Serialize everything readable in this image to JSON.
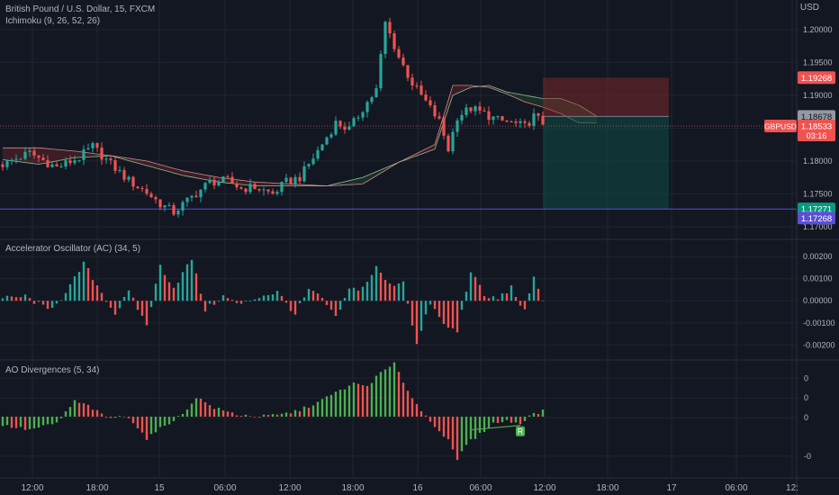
{
  "header": {
    "symbol_line": "British Pound / U.S. Dollar, 15, FXCM",
    "ichimoku_label": "Ichimoku (9, 26, 52, 26)",
    "currency": "USD"
  },
  "ac_pane": {
    "label": "Accelerator Oscillator (AC) (34, 5)"
  },
  "ao_pane": {
    "label": "AO Divergences (5, 34)",
    "divergence_marker": "R"
  },
  "price_labels": {
    "stop": "1.19268",
    "entry": "1.18678",
    "ticker": "GBPUSD",
    "last": "1.18533",
    "countdown": "03:16",
    "target": "1.17271",
    "line": "1.17268"
  },
  "colors": {
    "background": "#131722",
    "grid": "#1f2430",
    "up": "#26a69a",
    "down": "#ef5350",
    "ao_up": "#4caf50",
    "risk": "#8e2b2b",
    "reward": "#0e4c47",
    "horizontal_line": "#5b4fd6"
  },
  "chart_data": [
    {
      "type": "candlestick",
      "title": "British Pound / U.S. Dollar, 15, FXCM",
      "ylabel": "USD",
      "x_ticks": [
        "12:00",
        "18:00",
        "15",
        "06:00",
        "12:00",
        "18:00",
        "16",
        "06:00",
        "12:00",
        "18:00",
        "17",
        "06:00",
        "12:"
      ],
      "y_ticks": [
        "1.20000",
        "1.19500",
        "1.19000",
        "1.18500",
        "1.18000",
        "1.17500",
        "1.17000"
      ],
      "ylim": [
        1.1682,
        1.2045
      ],
      "close_path": [
        [
          0,
          1.1795
        ],
        [
          6,
          1.1812
        ],
        [
          12,
          1.179
        ],
        [
          17,
          1.1805
        ],
        [
          20,
          1.1822
        ],
        [
          24,
          1.1795
        ],
        [
          28,
          1.177
        ],
        [
          32,
          1.1752
        ],
        [
          35,
          1.1735
        ],
        [
          38,
          1.1722
        ],
        [
          42,
          1.1745
        ],
        [
          46,
          1.1768
        ],
        [
          50,
          1.177
        ],
        [
          53,
          1.1758
        ],
        [
          56,
          1.176
        ],
        [
          60,
          1.175
        ],
        [
          63,
          1.1768
        ],
        [
          66,
          1.1775
        ],
        [
          70,
          1.1815
        ],
        [
          74,
          1.1858
        ],
        [
          77,
          1.1848
        ],
        [
          80,
          1.188
        ],
        [
          83,
          1.1908
        ],
        [
          85,
          1.201
        ],
        [
          88,
          1.1958
        ],
        [
          91,
          1.1918
        ],
        [
          94,
          1.189
        ],
        [
          97,
          1.186
        ],
        [
          99,
          1.1818
        ],
        [
          101,
          1.1868
        ],
        [
          104,
          1.188
        ],
        [
          107,
          1.1872
        ],
        [
          110,
          1.1862
        ],
        [
          113,
          1.1858
        ],
        [
          116,
          1.1852
        ],
        [
          118,
          1.1868
        ],
        [
          120,
          1.1858
        ]
      ],
      "ichimoku": {
        "span_a": [
          [
            0,
            1.1802
          ],
          [
            8,
            1.1795
          ],
          [
            16,
            1.1805
          ],
          [
            24,
            1.1808
          ],
          [
            32,
            1.1793
          ],
          [
            40,
            1.1778
          ],
          [
            48,
            1.1768
          ],
          [
            56,
            1.1762
          ],
          [
            64,
            1.1762
          ],
          [
            72,
            1.1762
          ],
          [
            80,
            1.1775
          ],
          [
            88,
            1.1798
          ],
          [
            96,
            1.1818
          ],
          [
            100,
            1.19
          ],
          [
            104,
            1.1912
          ],
          [
            108,
            1.1915
          ],
          [
            112,
            1.1905
          ],
          [
            116,
            1.19
          ],
          [
            120,
            1.1895
          ],
          [
            124,
            1.1895
          ],
          [
            128,
            1.1885
          ],
          [
            132,
            1.1868
          ]
        ],
        "span_b": [
          [
            0,
            1.182
          ],
          [
            8,
            1.182
          ],
          [
            16,
            1.1815
          ],
          [
            24,
            1.1808
          ],
          [
            32,
            1.18
          ],
          [
            40,
            1.1785
          ],
          [
            48,
            1.1775
          ],
          [
            56,
            1.1768
          ],
          [
            64,
            1.1765
          ],
          [
            72,
            1.1762
          ],
          [
            80,
            1.1765
          ],
          [
            88,
            1.1798
          ],
          [
            96,
            1.1825
          ],
          [
            100,
            1.1915
          ],
          [
            104,
            1.1915
          ],
          [
            108,
            1.1912
          ],
          [
            112,
            1.1902
          ],
          [
            116,
            1.189
          ],
          [
            120,
            1.1882
          ],
          [
            124,
            1.1872
          ],
          [
            128,
            1.1858
          ],
          [
            132,
            1.1858
          ]
        ]
      },
      "long_short_position": {
        "start": 120,
        "end": 148,
        "entry": 1.18678,
        "stop": 1.19268,
        "target": 1.17271
      },
      "horizontal_line": 1.17268,
      "last_price": 1.18533
    },
    {
      "type": "bar",
      "title": "Accelerator Oscillator (AC) (34, 5)",
      "y_ticks": [
        "0.00200",
        "0.00100",
        "0.00000",
        "-0.00100",
        "-0.00200"
      ],
      "ylim": [
        -0.0026,
        0.0027
      ],
      "path": [
        [
          0,
          0.0001
        ],
        [
          5,
          0.0002
        ],
        [
          10,
          -0.0004
        ],
        [
          14,
          0.0003
        ],
        [
          18,
          0.0017
        ],
        [
          21,
          0.0007
        ],
        [
          25,
          -0.0006
        ],
        [
          28,
          0.0004
        ],
        [
          32,
          -0.0011
        ],
        [
          35,
          0.0016
        ],
        [
          38,
          0.0006
        ],
        [
          42,
          0.0019
        ],
        [
          45,
          -0.0004
        ],
        [
          49,
          0.0002
        ],
        [
          53,
          -0.0002
        ],
        [
          57,
          0.0002
        ],
        [
          61,
          0.0004
        ],
        [
          65,
          -0.0006
        ],
        [
          68,
          0.0005
        ],
        [
          71,
          0.0001
        ],
        [
          74,
          -0.0008
        ],
        [
          77,
          0.0005
        ],
        [
          80,
          0.0006
        ],
        [
          83,
          0.0015
        ],
        [
          86,
          0.0007
        ],
        [
          89,
          0.0009
        ],
        [
          92,
          -0.002
        ],
        [
          95,
          -0.0001
        ],
        [
          98,
          -0.0011
        ],
        [
          101,
          -0.0014
        ],
        [
          104,
          0.0014
        ],
        [
          107,
          0.0002
        ],
        [
          110,
          0.0001
        ],
        [
          113,
          0.0006
        ],
        [
          116,
          -0.0005
        ],
        [
          118,
          0.001
        ],
        [
          120,
          0.0001
        ]
      ]
    },
    {
      "type": "bar",
      "title": "AO Divergences (5, 34)",
      "y_ticks": [
        "0",
        "0",
        "0",
        "-0"
      ],
      "ylim": [
        -0.0055,
        0.005
      ],
      "tick_values": [
        0.0035,
        0.0017,
        -0.0001,
        -0.0036
      ],
      "path": [
        [
          0,
          -0.0008
        ],
        [
          6,
          -0.0012
        ],
        [
          12,
          -0.0006
        ],
        [
          16,
          0.0014
        ],
        [
          19,
          0.001
        ],
        [
          23,
          -0.0001
        ],
        [
          28,
          0.0
        ],
        [
          32,
          -0.002
        ],
        [
          36,
          -0.0008
        ],
        [
          40,
          0.0002
        ],
        [
          43,
          0.0018
        ],
        [
          47,
          0.0008
        ],
        [
          52,
          0.0002
        ],
        [
          57,
          0.0
        ],
        [
          62,
          0.0002
        ],
        [
          66,
          0.0006
        ],
        [
          70,
          0.0013
        ],
        [
          74,
          0.0022
        ],
        [
          78,
          0.003
        ],
        [
          81,
          0.0028
        ],
        [
          84,
          0.004
        ],
        [
          87,
          0.0048
        ],
        [
          90,
          0.0024
        ],
        [
          93,
          0.0005
        ],
        [
          96,
          -0.0008
        ],
        [
          99,
          -0.0022
        ],
        [
          101,
          -0.004
        ],
        [
          103,
          -0.0025
        ],
        [
          106,
          -0.0016
        ],
        [
          109,
          -0.0006
        ],
        [
          112,
          -0.0004
        ],
        [
          115,
          -0.0006
        ],
        [
          117,
          0.0001
        ],
        [
          120,
          0.0005
        ]
      ],
      "divergence_line": [
        [
          104,
          -0.0012
        ],
        [
          115,
          -0.0008
        ]
      ]
    }
  ]
}
